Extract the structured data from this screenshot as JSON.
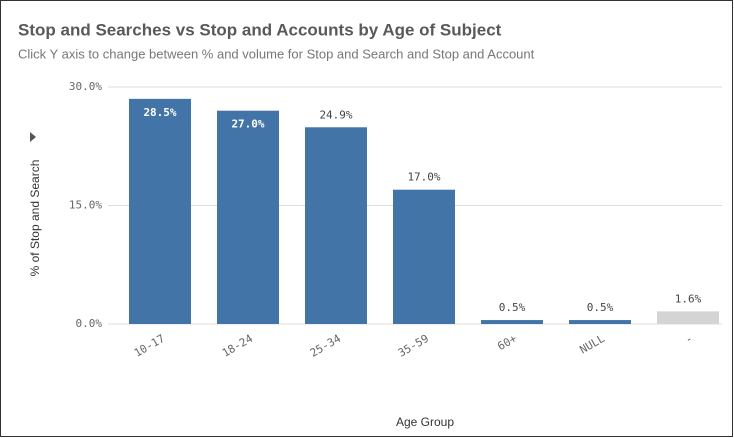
{
  "chart_data": {
    "type": "bar",
    "title": "Stop and Searches vs Stop and Accounts by Age of Subject",
    "subtitle": "Click Y axis to change between % and volume for Stop and Search and Stop and Account",
    "x_label": "Age Group",
    "y_label": "% of Stop and Search",
    "categories": [
      "10-17",
      "18-24",
      "25-34",
      "35-59",
      "60+",
      "NULL",
      "-"
    ],
    "values": [
      28.5,
      27.0,
      24.9,
      17.0,
      0.5,
      0.5,
      1.6
    ],
    "value_labels": [
      "28.5%",
      "27.0%",
      "24.9%",
      "17.0%",
      "0.5%",
      "0.5%",
      "1.6%"
    ],
    "colors": [
      "#4274a8",
      "#4274a8",
      "#4274a8",
      "#4274a8",
      "#4274a8",
      "#4274a8",
      "#d4d4d4"
    ],
    "ylim": [
      0,
      30
    ],
    "yticks": [
      {
        "value": 0,
        "label": "0.0%"
      },
      {
        "value": 15,
        "label": "15.0%"
      },
      {
        "value": 30,
        "label": "30.0%"
      }
    ],
    "grid": true
  }
}
